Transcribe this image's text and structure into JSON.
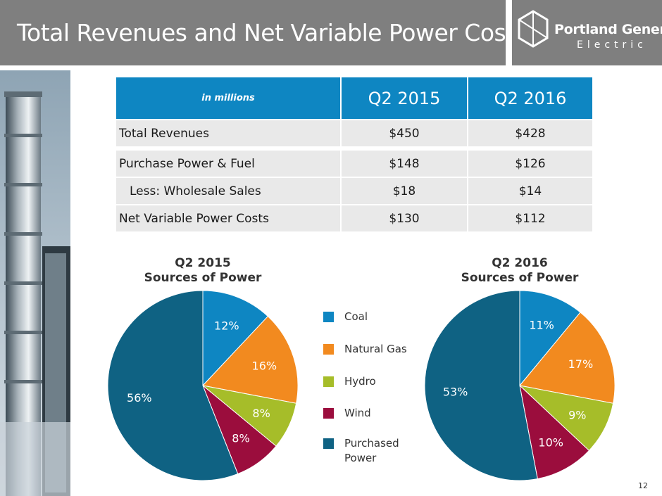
{
  "title": "Total Revenues and Net Variable Power Costs",
  "logo": {
    "name": "Portland General",
    "sub": "Electric"
  },
  "table": {
    "header": [
      "in millions",
      "Q2 2015",
      "Q2 2016"
    ],
    "rows": [
      [
        "Total Revenues",
        "$450",
        "$428"
      ],
      [
        "Purchase Power & Fuel",
        "$148",
        "$126"
      ],
      [
        "Less: Wholesale Sales",
        "$18",
        "$14"
      ],
      [
        "Net Variable Power Costs",
        "$130",
        "$112"
      ]
    ]
  },
  "legend": [
    {
      "label": "Coal",
      "color": "#0e86c2"
    },
    {
      "label": "Natural Gas",
      "color": "#f28a1f"
    },
    {
      "label": "Hydro",
      "color": "#a6bd29"
    },
    {
      "label": "Wind",
      "color": "#9b0d3d"
    },
    {
      "label": "Purchased Power",
      "color": "#0f6283"
    }
  ],
  "chart_data": [
    {
      "type": "pie",
      "title_line1": "Q2 2015",
      "title_line2": "Sources of Power",
      "categories": [
        "Coal",
        "Natural Gas",
        "Hydro",
        "Wind",
        "Purchased Power"
      ],
      "values": [
        12,
        16,
        8,
        8,
        56
      ],
      "labels": [
        "12%",
        "16%",
        "8%",
        "8%",
        "56%"
      ]
    },
    {
      "type": "pie",
      "title_line1": "Q2 2016",
      "title_line2": "Sources of Power",
      "categories": [
        "Coal",
        "Natural Gas",
        "Hydro",
        "Wind",
        "Purchased Power"
      ],
      "values": [
        11,
        17,
        9,
        10,
        53
      ],
      "labels": [
        "11%",
        "17%",
        "9%",
        "10%",
        "53%"
      ]
    }
  ],
  "page_number": "12"
}
